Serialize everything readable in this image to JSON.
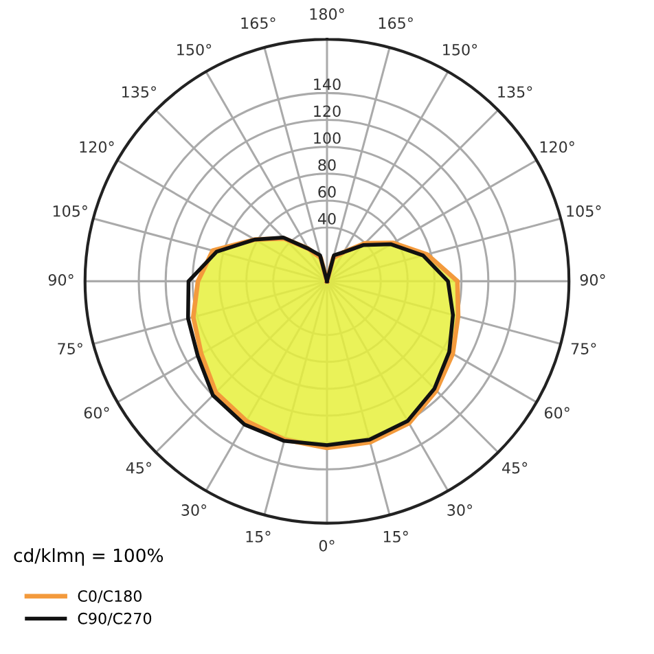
{
  "chart_data": {
    "type": "radar",
    "categories": [
      "180°",
      "165°",
      "150°",
      "135°",
      "120°",
      "105°",
      "90°",
      "75°",
      "60°",
      "45°",
      "30°",
      "15°",
      "0°",
      "15°",
      "30°",
      "45°",
      "60°",
      "75°",
      "90°",
      "105°",
      "120°",
      "135°",
      "150°",
      "165°"
    ],
    "series": [
      {
        "name": "C0/C180",
        "color": "#f39a3c",
        "values": [
          0,
          18,
          25,
          40,
          57,
          77,
          97,
          101,
          108,
          115,
          122,
          124,
          124,
          122,
          120,
          117,
          108,
          103,
          96,
          88,
          62,
          45,
          28,
          18
        ]
      },
      {
        "name": "C90/C270",
        "color": "#111111",
        "values": [
          0,
          20,
          25,
          38,
          55,
          74,
          90,
          97,
          105,
          113,
          120,
          122,
          122,
          123,
          123,
          120,
          111,
          107,
          103,
          85,
          62,
          46,
          28,
          20
        ]
      }
    ],
    "ylim": [
      0,
      180
    ],
    "yticks": [
      40,
      60,
      80,
      100,
      120,
      140
    ],
    "grid": true,
    "legend": "bottom left",
    "annotations": [
      "cd/klmη = 100%"
    ]
  }
}
